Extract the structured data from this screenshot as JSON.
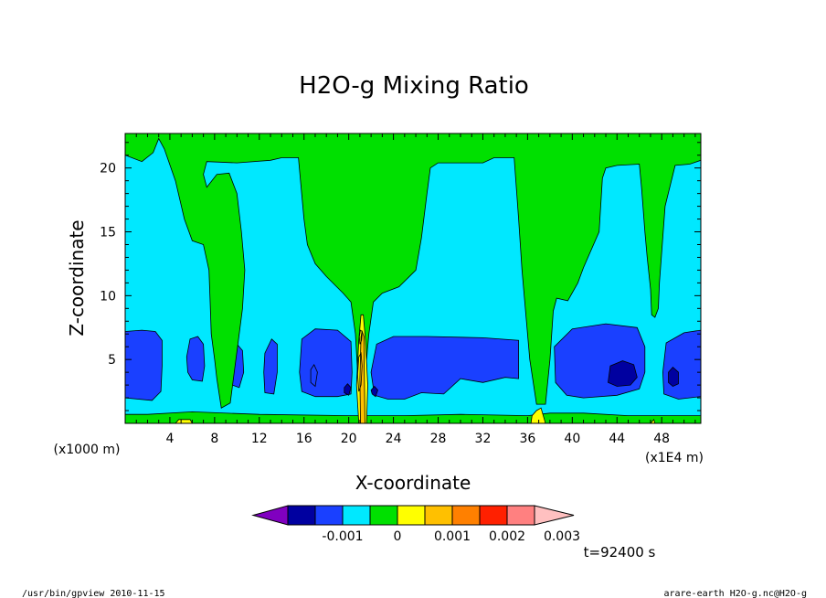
{
  "chart_data": {
    "type": "heatmap",
    "subtype": "filled-contour",
    "title": "H2O-g Mixing Ratio",
    "xlabel": "X-coordinate",
    "ylabel": "Z-coordinate",
    "x_unit": "(x1000 m)",
    "x_scale_note": "(x1E4 m)",
    "xlim": [
      0,
      51.5
    ],
    "ylim": [
      0,
      22.7
    ],
    "x_ticks": [
      4,
      8,
      12,
      16,
      20,
      24,
      28,
      32,
      36,
      40,
      44,
      48
    ],
    "y_ticks": [
      5,
      10,
      15,
      20
    ],
    "levels": [
      -0.002,
      -0.0015,
      -0.001,
      -0.0005,
      0,
      0.0005,
      0.001,
      0.0015,
      0.002,
      0.0025,
      0.003
    ],
    "colorbar": {
      "colors": [
        "#8000c0",
        "#0000a0",
        "#1a40ff",
        "#00e8ff",
        "#00e000",
        "#ffff00",
        "#ffc000",
        "#ff8000",
        "#ff2000",
        "#ff8080",
        "#ffc0c0"
      ],
      "tick_labels": [
        "-0.001",
        "0",
        "0.001",
        "0.002",
        "0.003"
      ]
    },
    "regions": [
      {
        "level": "-0.001",
        "color": "#1a40ff",
        "polygons": [
          [
            [
              0,
              2
            ],
            [
              2.4,
              1.8
            ],
            [
              3.2,
              2.5
            ],
            [
              3.3,
              4.5
            ],
            [
              3.3,
              6.5
            ],
            [
              2.7,
              7.2
            ],
            [
              1.5,
              7.3
            ],
            [
              0,
              7.2
            ]
          ],
          [
            [
              15.8,
              2.5
            ],
            [
              17,
              2.1
            ],
            [
              19,
              2.1
            ],
            [
              20.2,
              2.3
            ],
            [
              20.3,
              4
            ],
            [
              20.2,
              6.4
            ],
            [
              19,
              7.3
            ],
            [
              17,
              7.4
            ],
            [
              15.8,
              6.6
            ],
            [
              15.6,
              4
            ]
          ],
          [
            [
              22.3,
              2.2
            ],
            [
              23.5,
              1.9
            ],
            [
              25,
              1.9
            ],
            [
              26.5,
              2.4
            ],
            [
              28.5,
              2.3
            ],
            [
              30,
              3.5
            ],
            [
              32,
              3.2
            ],
            [
              34,
              3.6
            ],
            [
              35.2,
              3.5
            ],
            [
              35.2,
              6.5
            ],
            [
              32,
              6.7
            ],
            [
              27,
              6.8
            ],
            [
              24,
              6.8
            ],
            [
              22.5,
              6.2
            ],
            [
              22,
              4
            ]
          ],
          [
            [
              38.5,
              3.2
            ],
            [
              39.5,
              2.2
            ],
            [
              41,
              2
            ],
            [
              44,
              2.2
            ],
            [
              46,
              2.7
            ],
            [
              46.5,
              4
            ],
            [
              46.5,
              6
            ],
            [
              45.8,
              7.5
            ],
            [
              43,
              7.8
            ],
            [
              40,
              7.4
            ],
            [
              38.4,
              6
            ]
          ],
          [
            [
              48.2,
              2.3
            ],
            [
              49.5,
              1.9
            ],
            [
              51.5,
              2.1
            ],
            [
              51.5,
              7.3
            ],
            [
              50,
              7.1
            ],
            [
              48.4,
              6.3
            ],
            [
              48.1,
              4
            ]
          ],
          [
            [
              5.6,
              4
            ],
            [
              6,
              3.4
            ],
            [
              6.9,
              3.3
            ],
            [
              7.1,
              4.5
            ],
            [
              7,
              6.2
            ],
            [
              6.5,
              6.8
            ],
            [
              5.8,
              6.6
            ],
            [
              5.5,
              5.2
            ]
          ],
          [
            [
              9.6,
              3
            ],
            [
              10.2,
              2.8
            ],
            [
              10.6,
              4
            ],
            [
              10.5,
              5.7
            ],
            [
              10.1,
              6.1
            ],
            [
              9.6,
              5.2
            ]
          ],
          [
            [
              12.5,
              2.4
            ],
            [
              13.3,
              2.3
            ],
            [
              13.6,
              4
            ],
            [
              13.6,
              6.2
            ],
            [
              13.1,
              6.6
            ],
            [
              12.5,
              5.5
            ],
            [
              12.4,
              4
            ]
          ],
          [
            [
              16.6,
              3.2
            ],
            [
              17,
              2.9
            ],
            [
              17.2,
              4
            ],
            [
              16.9,
              4.6
            ],
            [
              16.6,
              4.2
            ]
          ]
        ]
      },
      {
        "level": "-0.0015",
        "color": "#0000a0",
        "polygons": [
          [
            [
              43.2,
              3.2
            ],
            [
              44,
              2.9
            ],
            [
              45.2,
              3
            ],
            [
              45.8,
              3.6
            ],
            [
              45.5,
              4.6
            ],
            [
              44.5,
              4.9
            ],
            [
              43.4,
              4.5
            ]
          ],
          [
            [
              48.6,
              3.2
            ],
            [
              49,
              2.9
            ],
            [
              49.5,
              3.1
            ],
            [
              49.5,
              4
            ],
            [
              49,
              4.4
            ],
            [
              48.6,
              4
            ]
          ],
          [
            [
              19.6,
              2.4
            ],
            [
              20,
              2.2
            ],
            [
              20.2,
              2.8
            ],
            [
              19.9,
              3.1
            ],
            [
              19.6,
              2.8
            ]
          ],
          [
            [
              22.1,
              2.3
            ],
            [
              22.4,
              2.1
            ],
            [
              22.6,
              2.6
            ],
            [
              22.3,
              2.9
            ],
            [
              22,
              2.6
            ]
          ]
        ]
      },
      {
        "level": "0",
        "color": "#00e000",
        "polygons": [
          [
            [
              0,
              0
            ],
            [
              51.5,
              0
            ],
            [
              51.5,
              0.6
            ],
            [
              45,
              0.6
            ],
            [
              41,
              0.8
            ],
            [
              38,
              0.8
            ],
            [
              36,
              0.6
            ],
            [
              30,
              0.7
            ],
            [
              25,
              0.6
            ],
            [
              20,
              0.6
            ],
            [
              12,
              0.7
            ],
            [
              6,
              0.9
            ],
            [
              2,
              0.7
            ],
            [
              0,
              0.7
            ]
          ],
          [
            [
              0,
              21
            ],
            [
              1.5,
              20.5
            ],
            [
              2.5,
              21.2
            ],
            [
              3,
              22.3
            ],
            [
              3.5,
              21.5
            ],
            [
              4.5,
              19
            ],
            [
              5.3,
              16
            ],
            [
              6,
              14.3
            ],
            [
              7,
              14
            ],
            [
              7.5,
              12
            ],
            [
              7.6,
              9.5
            ],
            [
              7.7,
              7
            ],
            [
              8,
              5
            ],
            [
              8.2,
              3.5
            ],
            [
              8.6,
              1.2
            ],
            [
              9.4,
              1.6
            ],
            [
              10.2,
              7
            ],
            [
              10.5,
              9
            ],
            [
              10.7,
              12
            ],
            [
              10.4,
              15
            ],
            [
              10,
              18
            ],
            [
              9.3,
              19.6
            ],
            [
              8.2,
              19.5
            ],
            [
              7.3,
              18.5
            ],
            [
              7,
              19.5
            ],
            [
              7.3,
              20.5
            ],
            [
              10,
              20.4
            ],
            [
              13,
              20.6
            ],
            [
              14,
              20.8
            ],
            [
              15.5,
              20.8
            ],
            [
              16,
              16
            ],
            [
              16.3,
              14
            ],
            [
              17,
              12.5
            ],
            [
              18,
              11.5
            ],
            [
              19.5,
              10.2
            ],
            [
              20.2,
              9.5
            ],
            [
              20.6,
              7
            ],
            [
              20.8,
              4
            ],
            [
              21,
              1
            ],
            [
              21.5,
              4
            ],
            [
              21.8,
              7
            ],
            [
              22.2,
              9.5
            ],
            [
              23,
              10.2
            ],
            [
              24.5,
              10.7
            ],
            [
              26,
              12
            ],
            [
              26.5,
              14.5
            ],
            [
              27,
              18
            ],
            [
              27.3,
              20
            ],
            [
              28,
              20.4
            ],
            [
              32,
              20.4
            ],
            [
              33,
              20.8
            ],
            [
              34.8,
              20.8
            ],
            [
              35.2,
              16
            ],
            [
              35.5,
              12
            ],
            [
              36.2,
              5
            ],
            [
              36.8,
              1.5
            ],
            [
              37.6,
              1.5
            ],
            [
              38,
              5
            ],
            [
              38.3,
              8.8
            ],
            [
              38.6,
              9.8
            ],
            [
              39.6,
              9.6
            ],
            [
              40.5,
              11
            ],
            [
              41,
              12.2
            ],
            [
              42.4,
              15
            ],
            [
              42.7,
              19.2
            ],
            [
              43,
              20
            ],
            [
              44,
              20.2
            ],
            [
              46,
              20.3
            ],
            [
              46.2,
              18.4
            ],
            [
              46.5,
              15
            ],
            [
              46.7,
              13
            ],
            [
              47,
              10.5
            ],
            [
              47.1,
              8.5
            ],
            [
              47.4,
              8.3
            ],
            [
              47.7,
              9
            ],
            [
              47.8,
              11
            ],
            [
              48.3,
              17
            ],
            [
              49.2,
              20.2
            ],
            [
              50.5,
              20.3
            ],
            [
              51.5,
              20.6
            ],
            [
              51.5,
              22.7
            ],
            [
              0,
              22.7
            ]
          ]
        ]
      },
      {
        "level": "0.0005",
        "color": "#ffff00",
        "polygons": [
          [
            [
              20.9,
              0
            ],
            [
              21.6,
              0
            ],
            [
              21.7,
              3
            ],
            [
              21.5,
              6.5
            ],
            [
              21.3,
              8.5
            ],
            [
              21.1,
              8.5
            ],
            [
              20.9,
              6.5
            ],
            [
              20.7,
              3
            ]
          ],
          [
            [
              36.3,
              0
            ],
            [
              37.6,
              0
            ],
            [
              37.2,
              1.2
            ],
            [
              36.8,
              1
            ],
            [
              36.4,
              0.6
            ]
          ],
          [
            [
              4.5,
              0
            ],
            [
              6,
              0
            ],
            [
              5.8,
              0.3
            ],
            [
              4.8,
              0.3
            ]
          ],
          [
            [
              47,
              0
            ],
            [
              47.4,
              0
            ],
            [
              47.3,
              0.3
            ]
          ]
        ]
      },
      {
        "level": "0.001",
        "color": "#ffc000",
        "polygons": [
          [
            [
              21.05,
              0
            ],
            [
              21.45,
              0
            ],
            [
              21.4,
              3.5
            ],
            [
              21.35,
              6.8
            ],
            [
              21.2,
              7.2
            ],
            [
              21.1,
              6.8
            ],
            [
              21,
              3.5
            ]
          ]
        ]
      }
    ],
    "contour_lines": [
      {
        "level": "-0.0015",
        "points": [
          [
            20.9,
            2.5
          ],
          [
            21.1,
            3
          ],
          [
            21.2,
            4.5
          ],
          [
            21.1,
            5.5
          ],
          [
            20.9,
            5.2
          ],
          [
            20.8,
            3.8
          ]
        ]
      },
      {
        "level": "-0.0015",
        "points": [
          [
            21,
            6.2
          ],
          [
            21.15,
            6.5
          ],
          [
            21.2,
            7.2
          ],
          [
            21.05,
            7.3
          ],
          [
            20.95,
            6.8
          ]
        ]
      }
    ]
  },
  "colorbar_label_values": [
    -0.001,
    0,
    0.001,
    0.002,
    0.003
  ],
  "timestamp": "t=92400 s",
  "footer": {
    "left": "/usr/bin/gpview  2010-11-15",
    "right": "arare-earth_H2O-g.nc@H2O-g"
  }
}
